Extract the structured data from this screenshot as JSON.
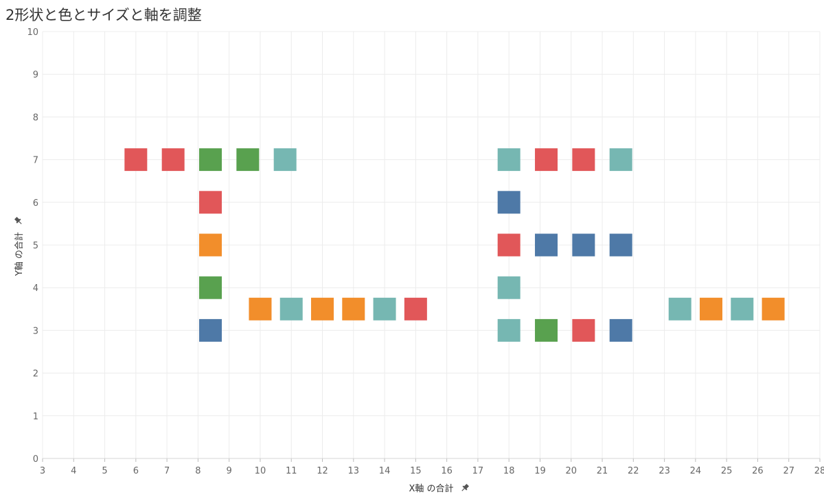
{
  "title": "2形状と色とサイズと軸を調整",
  "colors": {
    "red": "#e15759",
    "green": "#59a14f",
    "teal": "#76b7b2",
    "orange": "#f28e2b",
    "blue": "#4e79a7"
  },
  "chart_data": {
    "type": "scatter",
    "title": "2形状と色とサイズと軸を調整",
    "xlabel": "X軸 の合計",
    "ylabel": "Y軸 の合計",
    "xlim": [
      3,
      28
    ],
    "ylim": [
      0,
      10
    ],
    "x_ticks": [
      3,
      4,
      5,
      6,
      7,
      8,
      9,
      10,
      11,
      12,
      13,
      14,
      15,
      16,
      17,
      18,
      19,
      20,
      21,
      22,
      23,
      24,
      25,
      26,
      27,
      28
    ],
    "y_ticks": [
      0,
      1,
      2,
      3,
      4,
      5,
      6,
      7,
      8,
      9,
      10
    ],
    "grid": true,
    "marker": "square",
    "points": [
      {
        "x": 6,
        "y": 7,
        "color": "red"
      },
      {
        "x": 7.2,
        "y": 7,
        "color": "red"
      },
      {
        "x": 8.4,
        "y": 7,
        "color": "green"
      },
      {
        "x": 9.6,
        "y": 7,
        "color": "green"
      },
      {
        "x": 10.8,
        "y": 7,
        "color": "teal"
      },
      {
        "x": 8.4,
        "y": 6,
        "color": "red"
      },
      {
        "x": 8.4,
        "y": 5,
        "color": "orange"
      },
      {
        "x": 8.4,
        "y": 4,
        "color": "green"
      },
      {
        "x": 8.4,
        "y": 3,
        "color": "blue"
      },
      {
        "x": 10,
        "y": 3.5,
        "color": "orange"
      },
      {
        "x": 11,
        "y": 3.5,
        "color": "teal"
      },
      {
        "x": 12,
        "y": 3.5,
        "color": "orange"
      },
      {
        "x": 13,
        "y": 3.5,
        "color": "orange"
      },
      {
        "x": 14,
        "y": 3.5,
        "color": "teal"
      },
      {
        "x": 15,
        "y": 3.5,
        "color": "red"
      },
      {
        "x": 18,
        "y": 7,
        "color": "teal"
      },
      {
        "x": 19.2,
        "y": 7,
        "color": "red"
      },
      {
        "x": 20.4,
        "y": 7,
        "color": "red"
      },
      {
        "x": 21.6,
        "y": 7,
        "color": "teal"
      },
      {
        "x": 18,
        "y": 6,
        "color": "blue"
      },
      {
        "x": 18,
        "y": 5,
        "color": "red"
      },
      {
        "x": 19.2,
        "y": 5,
        "color": "blue"
      },
      {
        "x": 20.4,
        "y": 5,
        "color": "blue"
      },
      {
        "x": 21.6,
        "y": 5,
        "color": "blue"
      },
      {
        "x": 18,
        "y": 4,
        "color": "teal"
      },
      {
        "x": 18,
        "y": 3,
        "color": "teal"
      },
      {
        "x": 19.2,
        "y": 3,
        "color": "green"
      },
      {
        "x": 20.4,
        "y": 3,
        "color": "red"
      },
      {
        "x": 21.6,
        "y": 3,
        "color": "blue"
      },
      {
        "x": 23.5,
        "y": 3.5,
        "color": "teal"
      },
      {
        "x": 24.5,
        "y": 3.5,
        "color": "orange"
      },
      {
        "x": 25.5,
        "y": 3.5,
        "color": "teal"
      },
      {
        "x": 26.5,
        "y": 3.5,
        "color": "orange"
      }
    ]
  }
}
